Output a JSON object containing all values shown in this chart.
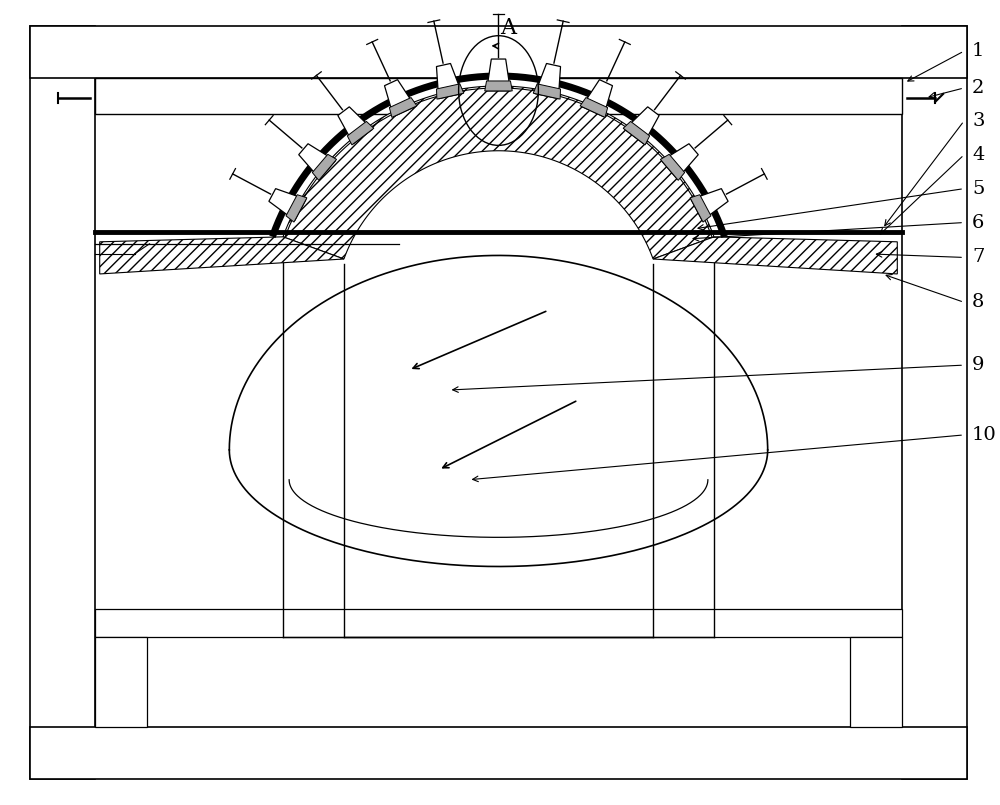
{
  "bg_color": "#ffffff",
  "line_color": "#000000",
  "fig_width": 10.0,
  "fig_height": 8.05,
  "dpi": 100
}
